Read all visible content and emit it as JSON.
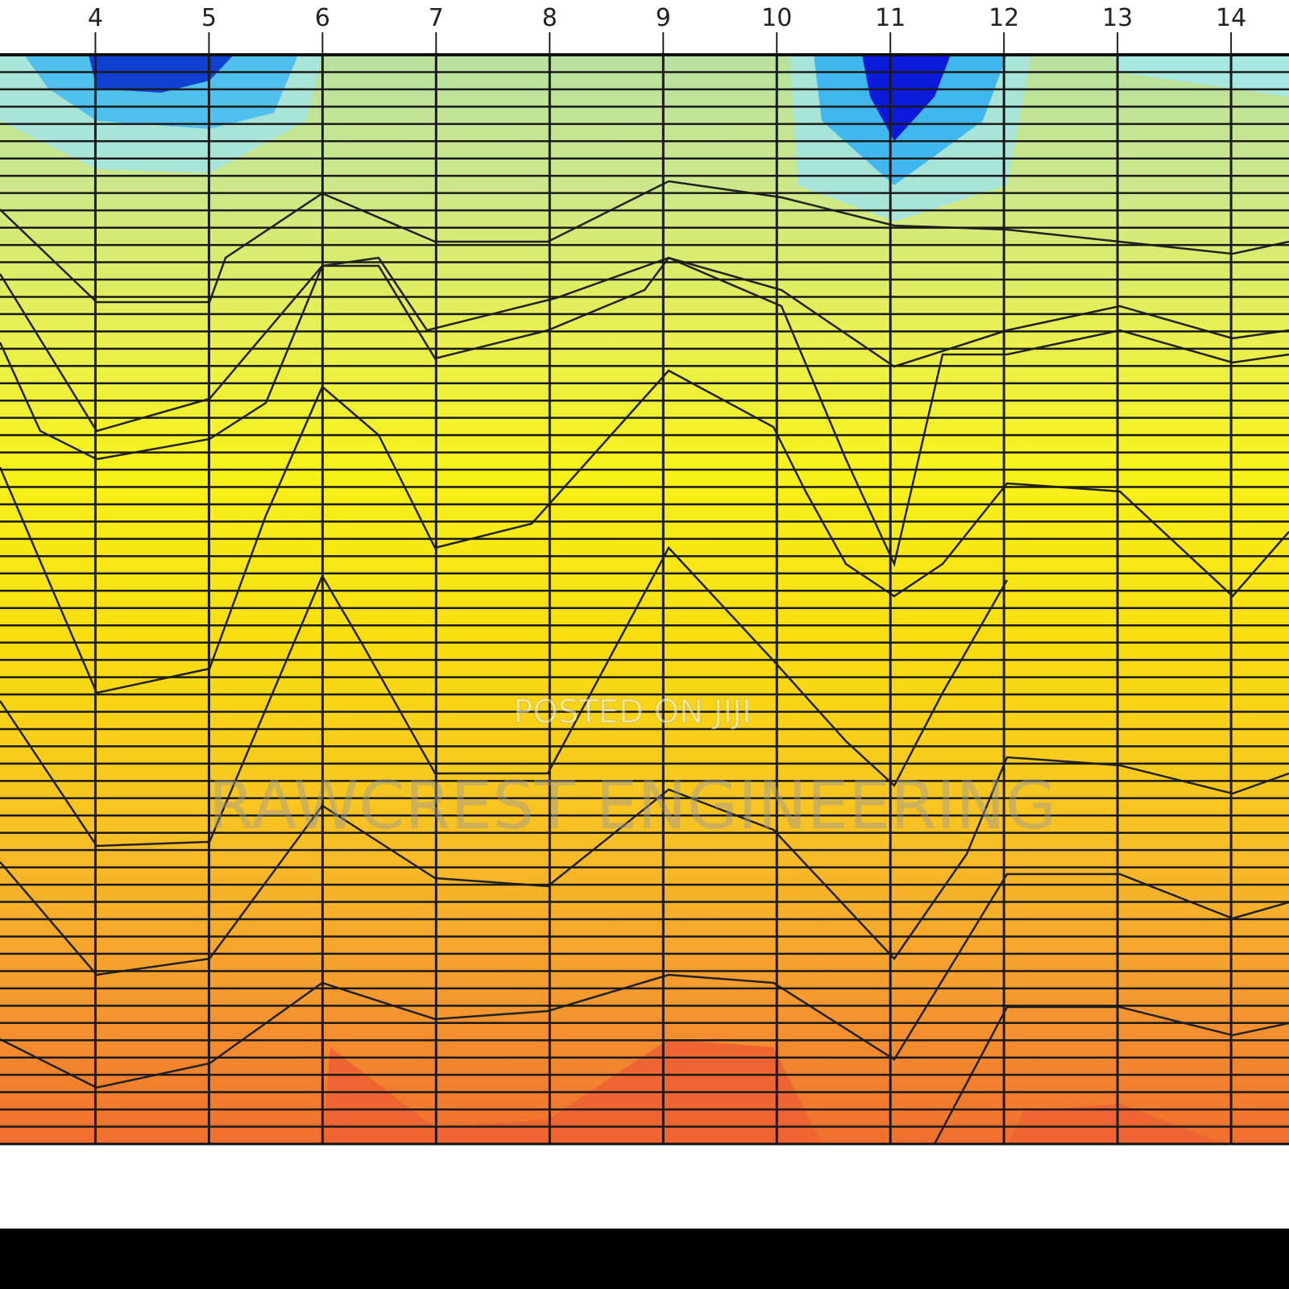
{
  "chart_data": {
    "type": "contour",
    "xlim": [
      3.16,
      14.51
    ],
    "xticks": [
      4,
      5,
      6,
      7,
      8,
      9,
      10,
      11,
      12,
      13,
      14
    ],
    "grid": true,
    "annotations": [
      "POSTED ON JIJI",
      "RAWCREST ENGINEERING"
    ]
  }
}
